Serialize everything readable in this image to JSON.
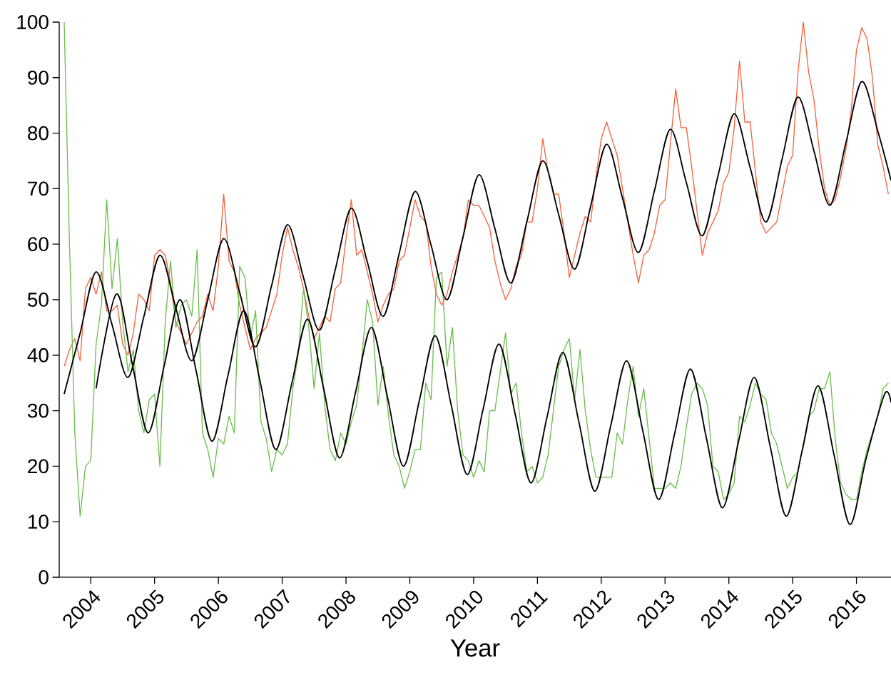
{
  "chart_data": {
    "type": "line",
    "xlabel": "Year",
    "x": [
      "2003-08",
      "2003-09",
      "2003-10",
      "2003-11",
      "2003-12",
      "2004-01",
      "2004-02",
      "2004-03",
      "2004-04",
      "2004-05",
      "2004-06",
      "2004-07",
      "2004-08",
      "2004-09",
      "2004-10",
      "2004-11",
      "2004-12",
      "2005-01",
      "2005-02",
      "2005-03",
      "2005-04",
      "2005-05",
      "2005-06",
      "2005-07",
      "2005-08",
      "2005-09",
      "2005-10",
      "2005-11",
      "2005-12",
      "2006-01",
      "2006-02",
      "2006-03",
      "2006-04",
      "2006-05",
      "2006-06",
      "2006-07",
      "2006-08",
      "2006-09",
      "2006-10",
      "2006-11",
      "2006-12",
      "2007-01",
      "2007-02",
      "2007-03",
      "2007-04",
      "2007-05",
      "2007-06",
      "2007-07",
      "2007-08",
      "2007-09",
      "2007-10",
      "2007-11",
      "2007-12",
      "2008-01",
      "2008-02",
      "2008-03",
      "2008-04",
      "2008-05",
      "2008-06",
      "2008-07",
      "2008-08",
      "2008-09",
      "2008-10",
      "2008-11",
      "2008-12",
      "2009-01",
      "2009-02",
      "2009-03",
      "2009-04",
      "2009-05",
      "2009-06",
      "2009-07",
      "2009-08",
      "2009-09",
      "2009-10",
      "2009-11",
      "2009-12",
      "2010-01",
      "2010-02",
      "2010-03",
      "2010-04",
      "2010-05",
      "2010-06",
      "2010-07",
      "2010-08",
      "2010-09",
      "2010-10",
      "2010-11",
      "2010-12",
      "2011-01",
      "2011-02",
      "2011-03",
      "2011-04",
      "2011-05",
      "2011-06",
      "2011-07",
      "2011-08",
      "2011-09",
      "2011-10",
      "2011-11",
      "2011-12",
      "2012-01",
      "2012-02",
      "2012-03",
      "2012-04",
      "2012-05",
      "2012-06",
      "2012-07",
      "2012-08",
      "2012-09",
      "2012-10",
      "2012-11",
      "2012-12",
      "2013-01",
      "2013-02",
      "2013-03",
      "2013-04",
      "2013-05",
      "2013-06",
      "2013-07",
      "2013-08",
      "2013-09",
      "2013-10",
      "2013-11",
      "2013-12",
      "2014-01",
      "2014-02",
      "2014-03",
      "2014-04",
      "2014-05",
      "2014-06",
      "2014-07",
      "2014-08",
      "2014-09",
      "2014-10",
      "2014-11",
      "2014-12",
      "2015-01",
      "2015-02",
      "2015-03",
      "2015-04",
      "2015-05",
      "2015-06",
      "2015-07",
      "2015-08",
      "2015-09",
      "2015-10",
      "2015-11",
      "2015-12",
      "2016-01",
      "2016-02",
      "2016-03",
      "2016-04",
      "2016-05",
      "2016-06",
      "2016-07"
    ],
    "series": [
      {
        "color": "#f4623a",
        "values": [
          38,
          41,
          43,
          39,
          52,
          54,
          51,
          55,
          48,
          48,
          49,
          42,
          40,
          44,
          51,
          50,
          48,
          58,
          59,
          58,
          53,
          46,
          44,
          42,
          44,
          46,
          47,
          51,
          48,
          56,
          69,
          57,
          55,
          49,
          45,
          41,
          43,
          44,
          45,
          48,
          51,
          58,
          63,
          59,
          56,
          52,
          47,
          43,
          45,
          47,
          46,
          52,
          53,
          61,
          68,
          58,
          59,
          55,
          51,
          46,
          49,
          51,
          52,
          57,
          58,
          63,
          68,
          65,
          64,
          56,
          51,
          49,
          51,
          55,
          58,
          61,
          68,
          67,
          67,
          65,
          63,
          57,
          53,
          50,
          52,
          56,
          58,
          64,
          64,
          70,
          79,
          73,
          69,
          69,
          62,
          54,
          58,
          62,
          65,
          64,
          72,
          79,
          82,
          79,
          76,
          70,
          64,
          58,
          53,
          58,
          59,
          62,
          67,
          68,
          78,
          88,
          81,
          81,
          74,
          66,
          58,
          62,
          64,
          66,
          71,
          73,
          81,
          93,
          82,
          82,
          73,
          64,
          62,
          63,
          64,
          69,
          74,
          76,
          91,
          100,
          91,
          86,
          77,
          70,
          67,
          68,
          72,
          77,
          84,
          95,
          99,
          97,
          90,
          78,
          74,
          69
        ]
      },
      {
        "color": "#6abf4b",
        "values": [
          100,
          60,
          26,
          11,
          20,
          21,
          42,
          49,
          68,
          52,
          61,
          46,
          37,
          41,
          30,
          26,
          32,
          33,
          20,
          46,
          57,
          45,
          49,
          50,
          47,
          59,
          26,
          23,
          18,
          25,
          24,
          29,
          26,
          56,
          54,
          43,
          48,
          28,
          25,
          19,
          23,
          22,
          24,
          34,
          40,
          52,
          45,
          34,
          44,
          31,
          23,
          21,
          26,
          24,
          28,
          31,
          40,
          50,
          46,
          31,
          38,
          29,
          22,
          20,
          16,
          19,
          23,
          23,
          35,
          32,
          54,
          55,
          38,
          45,
          30,
          22,
          21,
          18,
          21,
          19,
          30,
          30,
          37,
          44,
          33,
          35,
          26,
          19,
          20,
          17,
          18,
          22,
          30,
          38,
          41,
          43,
          32,
          41,
          30,
          23,
          18,
          18,
          18,
          18,
          26,
          24,
          32,
          38,
          29,
          34,
          25,
          16,
          16,
          16,
          17,
          16,
          20,
          27,
          33,
          35,
          34,
          31,
          20,
          19,
          14,
          15,
          17,
          29,
          28,
          31,
          35,
          33,
          32,
          26,
          24,
          20,
          16,
          18,
          19,
          24,
          29,
          30,
          34,
          34,
          37,
          25,
          17,
          15,
          14,
          14,
          19,
          23,
          26,
          29,
          34,
          35
        ]
      },
      {
        "color": "#000000",
        "x": [
          "2003-08-01",
          "2003-11-01",
          "2004-02-01",
          "2004-05-01",
          "2004-08-01",
          "2004-11-01",
          "2005-02-01",
          "2005-05-01",
          "2005-08-01",
          "2005-11-01",
          "2006-02-01",
          "2006-05-01",
          "2006-08-01",
          "2006-11-01",
          "2007-02-01",
          "2007-05-01",
          "2007-08-01",
          "2007-11-01",
          "2008-02-01",
          "2008-05-01",
          "2008-08-01",
          "2008-11-01",
          "2009-02-01",
          "2009-05-01",
          "2009-08-01",
          "2009-11-01",
          "2010-02-01",
          "2010-05-01",
          "2010-08-01",
          "2010-11-01",
          "2011-02-01",
          "2011-05-01",
          "2011-08-01",
          "2011-11-01",
          "2012-02-01",
          "2012-05-01",
          "2012-08-01",
          "2012-11-01",
          "2013-02-01",
          "2013-05-01",
          "2013-08-01",
          "2013-11-01",
          "2014-02-01",
          "2014-05-01",
          "2014-08-01",
          "2014-11-01",
          "2015-02-01",
          "2015-05-01",
          "2015-08-01",
          "2015-11-01",
          "2016-02-01",
          "2016-05-01",
          "2016-07-16"
        ],
        "values": [
          33,
          44,
          55,
          45.5,
          36,
          47,
          58,
          48.5,
          39,
          50,
          61,
          51.3,
          41.5,
          52.5,
          63.5,
          54,
          44.5,
          55.5,
          66.5,
          56.8,
          47,
          58.3,
          69.5,
          59.8,
          50,
          61.3,
          72.5,
          62.8,
          53,
          64,
          75,
          65.3,
          55.5,
          66.8,
          78,
          68.3,
          58.5,
          69.6,
          80.7,
          71.1,
          61.5,
          72.5,
          83.5,
          73.8,
          64,
          75.3,
          86.5,
          76.8,
          67,
          78.2,
          89.3,
          80.4,
          71.5
        ]
      },
      {
        "color": "#000000",
        "x": [
          "2004-02-01",
          "2004-05-25",
          "2004-08-25",
          "2004-11-25",
          "2005-02-25",
          "2005-05-25",
          "2005-08-25",
          "2005-11-25",
          "2006-02-25",
          "2006-05-25",
          "2006-08-25",
          "2006-11-25",
          "2007-02-25",
          "2007-05-25",
          "2007-08-25",
          "2007-11-25",
          "2008-02-25",
          "2008-05-25",
          "2008-08-25",
          "2008-11-25",
          "2009-02-25",
          "2009-05-25",
          "2009-08-25",
          "2009-11-25",
          "2010-02-25",
          "2010-05-25",
          "2010-08-25",
          "2010-11-25",
          "2011-02-25",
          "2011-05-25",
          "2011-08-25",
          "2011-11-25",
          "2012-02-25",
          "2012-05-25",
          "2012-08-25",
          "2012-11-25",
          "2013-02-25",
          "2013-05-25",
          "2013-08-25",
          "2013-11-25",
          "2014-02-25",
          "2014-05-25",
          "2014-08-25",
          "2014-11-25",
          "2015-02-25",
          "2015-05-25",
          "2015-08-25",
          "2015-11-25",
          "2016-02-25",
          "2016-06-10",
          "2016-07-16"
        ],
        "values": [
          34,
          51,
          38.5,
          26,
          38,
          50,
          37.3,
          24.5,
          36.3,
          48,
          35.5,
          23,
          34.8,
          46.5,
          34,
          21.5,
          33.3,
          45,
          32.5,
          20,
          31.8,
          43.5,
          31,
          18.5,
          30.3,
          42,
          29.5,
          17,
          28.8,
          40.5,
          28,
          15.5,
          27.3,
          39,
          26.5,
          14,
          25.8,
          37.5,
          25,
          12.5,
          24.3,
          36,
          23.5,
          11,
          22.8,
          34.5,
          22,
          9.5,
          21.3,
          33,
          31.5
        ]
      }
    ],
    "xlim": [
      "2003-07-03",
      "2016-07-16"
    ],
    "xticks": [
      "2004",
      "2005",
      "2006",
      "2007",
      "2008",
      "2009",
      "2010",
      "2011",
      "2012",
      "2013",
      "2014",
      "2015",
      "2016"
    ],
    "ylim": [
      0,
      100
    ],
    "yticks": [
      0,
      10,
      20,
      30,
      40,
      50,
      60,
      70,
      80,
      90,
      100
    ]
  }
}
